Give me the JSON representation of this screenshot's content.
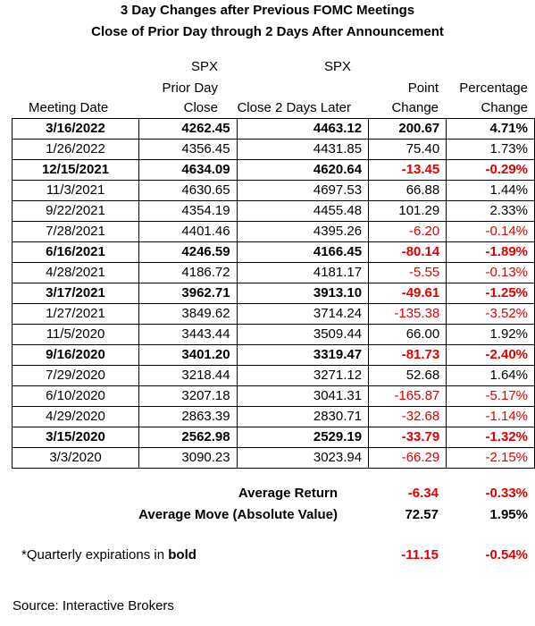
{
  "title_line1": "3 Day Changes after Previous FOMC Meetings",
  "title_line2": "Close of Prior Day through 2 Days After Announcement",
  "headers": {
    "meeting_date": "Meeting Date",
    "prior_l1": "SPX",
    "prior_l2": "Prior Day",
    "prior_l3": "Close",
    "later_l1": "SPX",
    "later_l2": "Close 2 Days Later",
    "point_l1": "Point",
    "point_l2": "Change",
    "pct_l1": "Percentage",
    "pct_l2": "Change"
  },
  "chart_data": {
    "type": "table",
    "title": "3 Day Changes after Previous FOMC Meetings — Close of Prior Day through 2 Days After Announcement",
    "columns": [
      "Meeting Date",
      "SPX Prior Day Close",
      "SPX Close 2 Days Later",
      "Point Change",
      "Percentage Change"
    ],
    "rows": [
      {
        "date": "3/16/2022",
        "prior": "4262.45",
        "later": "4463.12",
        "point": "200.67",
        "pct": "4.71%",
        "bold": true
      },
      {
        "date": "1/26/2022",
        "prior": "4356.45",
        "later": "4431.85",
        "point": "75.40",
        "pct": "1.73%",
        "bold": false
      },
      {
        "date": "12/15/2021",
        "prior": "4634.09",
        "later": "4620.64",
        "point": "-13.45",
        "pct": "-0.29%",
        "bold": true
      },
      {
        "date": "11/3/2021",
        "prior": "4630.65",
        "later": "4697.53",
        "point": "66.88",
        "pct": "1.44%",
        "bold": false
      },
      {
        "date": "9/22/2021",
        "prior": "4354.19",
        "later": "4455.48",
        "point": "101.29",
        "pct": "2.33%",
        "bold": false
      },
      {
        "date": "7/28/2021",
        "prior": "4401.46",
        "later": "4395.26",
        "point": "-6.20",
        "pct": "-0.14%",
        "bold": false
      },
      {
        "date": "6/16/2021",
        "prior": "4246.59",
        "later": "4166.45",
        "point": "-80.14",
        "pct": "-1.89%",
        "bold": true
      },
      {
        "date": "4/28/2021",
        "prior": "4186.72",
        "later": "4181.17",
        "point": "-5.55",
        "pct": "-0.13%",
        "bold": false
      },
      {
        "date": "3/17/2021",
        "prior": "3962.71",
        "later": "3913.10",
        "point": "-49.61",
        "pct": "-1.25%",
        "bold": true
      },
      {
        "date": "1/27/2021",
        "prior": "3849.62",
        "later": "3714.24",
        "point": "-135.38",
        "pct": "-3.52%",
        "bold": false
      },
      {
        "date": "11/5/2020",
        "prior": "3443.44",
        "later": "3509.44",
        "point": "66.00",
        "pct": "1.92%",
        "bold": false
      },
      {
        "date": "9/16/2020",
        "prior": "3401.20",
        "later": "3319.47",
        "point": "-81.73",
        "pct": "-2.40%",
        "bold": true
      },
      {
        "date": "7/29/2020",
        "prior": "3218.44",
        "later": "3271.12",
        "point": "52.68",
        "pct": "1.64%",
        "bold": false
      },
      {
        "date": "6/10/2020",
        "prior": "3207.18",
        "later": "3041.31",
        "point": "-165.87",
        "pct": "-5.17%",
        "bold": false
      },
      {
        "date": "4/29/2020",
        "prior": "2863.39",
        "later": "2830.71",
        "point": "-32.68",
        "pct": "-1.14%",
        "bold": false
      },
      {
        "date": "3/15/2020",
        "prior": "2562.98",
        "later": "2529.19",
        "point": "-33.79",
        "pct": "-1.32%",
        "bold": true
      },
      {
        "date": "3/3/2020",
        "prior": "3090.23",
        "later": "3023.94",
        "point": "-66.29",
        "pct": "-2.15%",
        "bold": false
      }
    ],
    "negative_color": "#e00000"
  },
  "summary": {
    "avg_return_label": "Average Return",
    "avg_return_point": "-6.34",
    "avg_return_pct": "-0.33%",
    "avg_move_label": "Average Move (Absolute Value)",
    "avg_move_point": "72.57",
    "avg_move_pct": "1.95%",
    "quarterly_note_prefix": "*Quarterly expirations in ",
    "quarterly_note_bold": "bold",
    "quarterly_point": "-11.15",
    "quarterly_pct": "-0.54%"
  },
  "source": "Source: Interactive Brokers"
}
